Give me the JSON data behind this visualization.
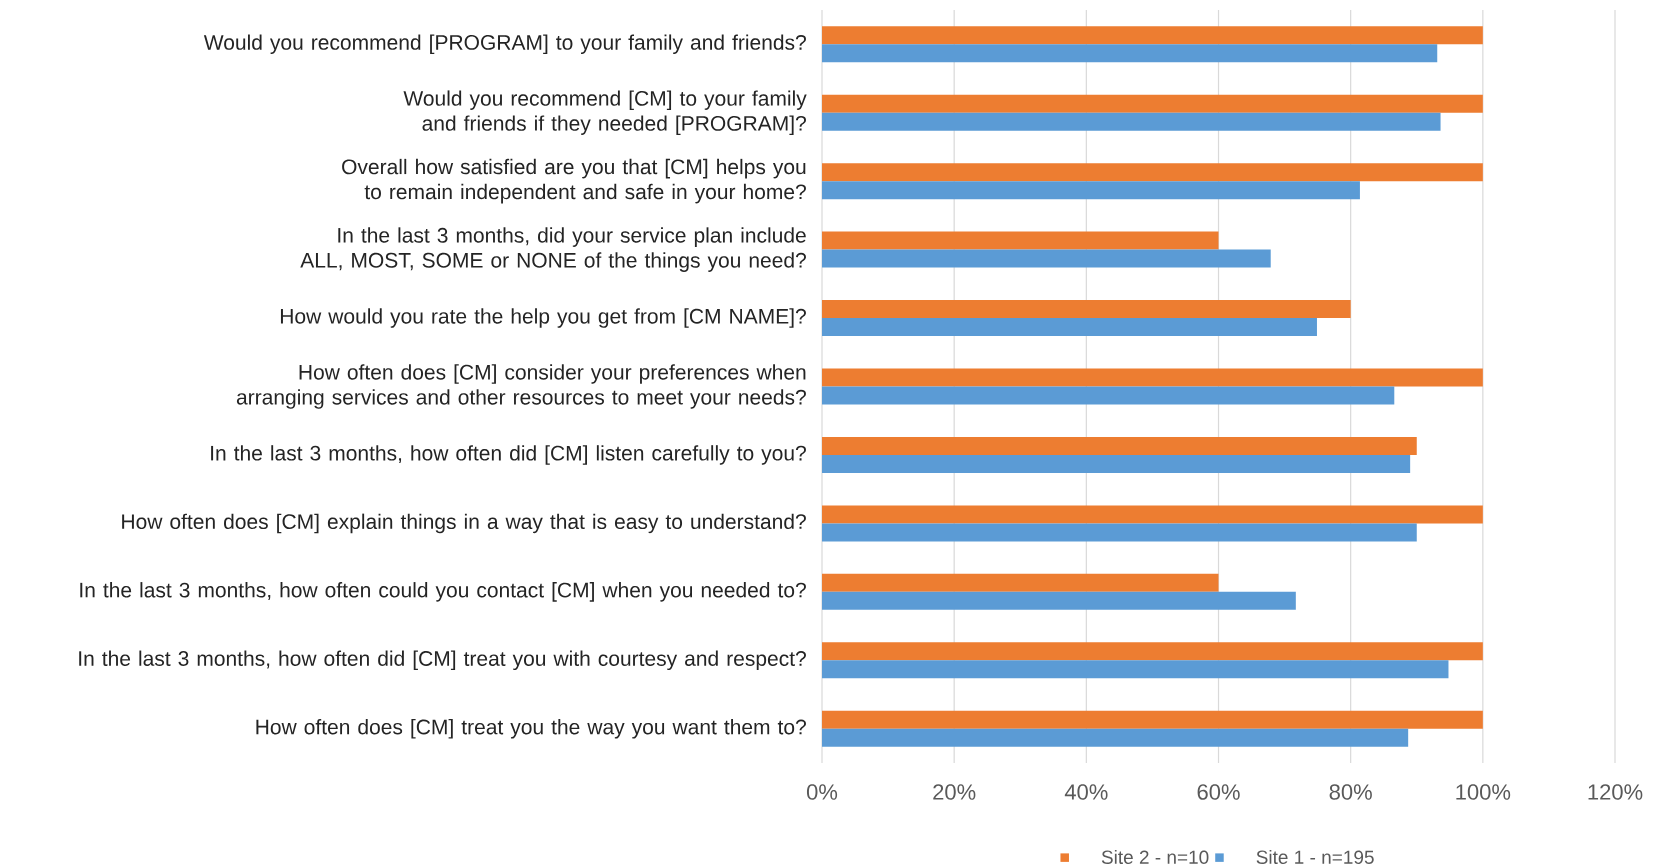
{
  "chart_data": {
    "type": "bar",
    "orientation": "horizontal",
    "categories": [
      "Would you recommend [PROGRAM] to your family and friends?",
      "Would you recommend [CM] to your family and friends if they needed [PROGRAM]?",
      "Overall how satisfied are you that [CM] helps you to remain independent and safe in your home?",
      "In the last 3 months, did your service plan include ALL, MOST, SOME or NONE of the things you need?",
      "How would you rate the help you get from [CM NAME]?",
      "How often does [CM] consider your preferences when arranging services and other resources to meet your needs?",
      "In the last 3 months, how often did [CM] listen carefully to you?",
      "How often does [CM] explain things in a way that is easy to understand?",
      "In the last 3 months, how often could you contact [CM] when you needed to?",
      "In the last 3 months, how often did [CM] treat you with courtesy and respect?",
      "How often does [CM] treat you the way you want them to?"
    ],
    "series": [
      {
        "name": "Site 2 - n=10",
        "color": "#ed7d31",
        "values": [
          100,
          100,
          100,
          60,
          80,
          100,
          90,
          100,
          60,
          100,
          100
        ]
      },
      {
        "name": "Site 1 - n=195",
        "color": "#5b9bd5",
        "values": [
          93.1,
          93.6,
          81.4,
          67.9,
          74.9,
          86.6,
          89.0,
          90.0,
          71.7,
          94.8,
          88.7
        ]
      }
    ],
    "xlim": [
      0,
      120
    ],
    "xticks": [
      {
        "value": 0,
        "label": "0%"
      },
      {
        "value": 20,
        "label": "20%"
      },
      {
        "value": 40,
        "label": "40%"
      },
      {
        "value": 60,
        "label": "60%"
      },
      {
        "value": 80,
        "label": "80%"
      },
      {
        "value": 100,
        "label": "100%"
      },
      {
        "value": 120,
        "label": "120%"
      }
    ],
    "grid": "x",
    "legend": "bottom"
  }
}
